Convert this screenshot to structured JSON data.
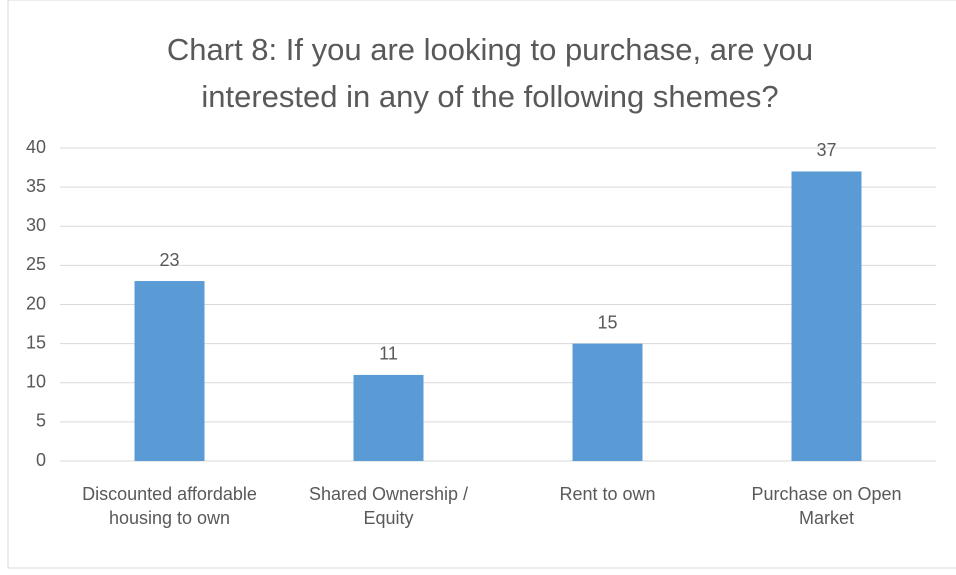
{
  "chart_data": {
    "type": "bar",
    "title": "Chart 8: If you are looking to purchase, are you interested in any of the following shemes?",
    "categories": [
      "Discounted affordable housing to own",
      "Shared Ownership / Equity",
      "Rent to own",
      "Purchase on Open Market"
    ],
    "values": [
      23,
      11,
      15,
      37
    ],
    "color": "#5b9bd5",
    "ylim": [
      0,
      40
    ],
    "yticks": [
      0,
      5,
      10,
      15,
      20,
      25,
      30,
      35,
      40
    ],
    "grid": true
  }
}
